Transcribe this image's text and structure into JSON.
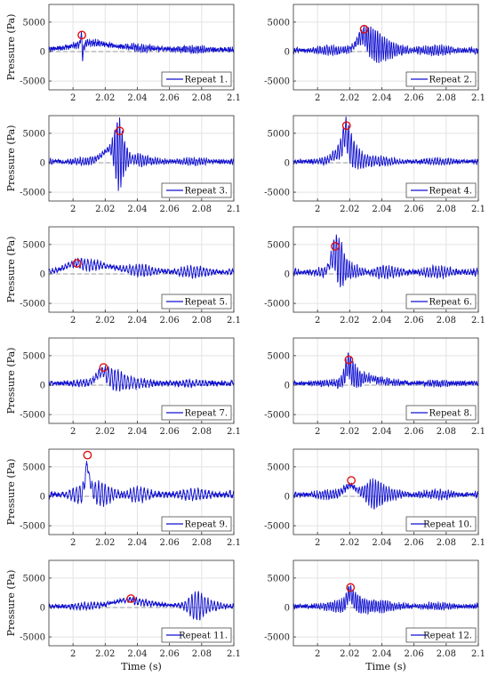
{
  "chart_data": {
    "type": "line",
    "x_range": [
      1.985,
      2.1
    ],
    "x_ticks": [
      2,
      2.02,
      2.04,
      2.06,
      2.08,
      2.1
    ],
    "x_tick_labels": [
      "2",
      "2.02",
      "2.04",
      "2.06",
      "2.08",
      "2.1"
    ],
    "y_ranges": [
      [
        -6500,
        8000
      ],
      [
        -6500,
        8000
      ],
      [
        -6500,
        8000
      ],
      [
        -6500,
        8000
      ],
      [
        -6500,
        8000
      ],
      [
        -6500,
        8000
      ]
    ],
    "y_ticks": [
      -5000,
      0,
      5000
    ],
    "y_tick_labels": [
      "-5000",
      "0",
      "5000"
    ],
    "xlabel": "Time (s)",
    "ylabel": "Pressure (Pa)",
    "grid": true,
    "legend_placement": "bottom-right",
    "series_color": "#1010d0",
    "peak_marker_color": "#dd1111",
    "zero_line_color": "#999999",
    "panels": [
      {
        "legend": "Repeat 1.",
        "baseline": 300,
        "peak": {
          "x": 2.0055,
          "y": 2800
        },
        "peaks": [
          {
            "t": 2.0055,
            "amp": 2600,
            "decay": 0.0008,
            "freq": 0
          },
          {
            "t": 2.006,
            "amp": -4200,
            "decay": 0.0006,
            "freq": 0
          },
          {
            "t": 2.015,
            "amp": 1200,
            "decay": 0.02,
            "freq": 0
          }
        ],
        "ripple": {
          "amp": 500,
          "freq": 800
        },
        "noise": 350
      },
      {
        "legend": "Repeat 2.",
        "baseline": 200,
        "peak": {
          "x": 2.029,
          "y": 3800
        },
        "peaks": [
          {
            "t": 2.029,
            "amp": 2600,
            "decay": 0.006,
            "freq": 0
          },
          {
            "t": 2.036,
            "amp": 2400,
            "decay": 0.01,
            "freq": 700
          }
        ],
        "ripple": {
          "amp": 700,
          "freq": 700
        },
        "noise": 350
      },
      {
        "legend": "Repeat 3.",
        "baseline": 200,
        "peak": {
          "x": 2.029,
          "y": 5400
        },
        "peaks": [
          {
            "t": 2.024,
            "amp": 2200,
            "decay": 0.008,
            "freq": 0
          },
          {
            "t": 2.029,
            "amp": 6500,
            "decay": 0.004,
            "freq": 650
          },
          {
            "t": 2.042,
            "amp": 1500,
            "decay": 0.01,
            "freq": 650
          }
        ],
        "ripple": {
          "amp": 600,
          "freq": 650
        },
        "noise": 300
      },
      {
        "legend": "Repeat 4.",
        "baseline": 200,
        "peak": {
          "x": 2.018,
          "y": 6300
        },
        "peaks": [
          {
            "t": 2.018,
            "amp": 4200,
            "decay": 0.003,
            "freq": 0
          },
          {
            "t": 2.021,
            "amp": 2800,
            "decay": 0.008,
            "freq": 600
          },
          {
            "t": 2.014,
            "amp": 1500,
            "decay": 0.006,
            "freq": 0
          }
        ],
        "ripple": {
          "amp": 500,
          "freq": 600
        },
        "noise": 300
      },
      {
        "legend": "Repeat 5.",
        "baseline": 300,
        "peak": {
          "x": 2.0025,
          "y": 1800
        },
        "peaks": [
          {
            "t": 2.0025,
            "amp": 1200,
            "decay": 0.01,
            "freq": 0
          },
          {
            "t": 2.02,
            "amp": 900,
            "decay": 0.02,
            "freq": 0
          }
        ],
        "ripple": {
          "amp": 900,
          "freq": 500
        },
        "noise": 300
      },
      {
        "legend": "Repeat 6.",
        "baseline": 300,
        "peak": {
          "x": 2.011,
          "y": 4700
        },
        "peaks": [
          {
            "t": 2.011,
            "amp": 3200,
            "decay": 0.004,
            "freq": 0
          },
          {
            "t": 2.015,
            "amp": 3800,
            "decay": 0.006,
            "freq": 620
          }
        ],
        "ripple": {
          "amp": 900,
          "freq": 550
        },
        "noise": 350
      },
      {
        "legend": "Repeat 7.",
        "baseline": 300,
        "peak": {
          "x": 2.019,
          "y": 3000
        },
        "peaks": [
          {
            "t": 2.019,
            "amp": 2000,
            "decay": 0.006,
            "freq": 0
          },
          {
            "t": 2.028,
            "amp": 1800,
            "decay": 0.012,
            "freq": 500
          }
        ],
        "ripple": {
          "amp": 500,
          "freq": 500
        },
        "noise": 350
      },
      {
        "legend": "Repeat 8.",
        "baseline": 300,
        "peak": {
          "x": 2.0195,
          "y": 4300
        },
        "peaks": [
          {
            "t": 2.0195,
            "amp": 3200,
            "decay": 0.003,
            "freq": 0
          },
          {
            "t": 2.022,
            "amp": 2200,
            "decay": 0.008,
            "freq": 700
          },
          {
            "t": 2.033,
            "amp": 800,
            "decay": 0.01,
            "freq": 0
          }
        ],
        "ripple": {
          "amp": 400,
          "freq": 700
        },
        "noise": 350
      },
      {
        "legend": "Repeat 9.",
        "baseline": 300,
        "peak": {
          "x": 2.009,
          "y": 7000
        },
        "peaks": [
          {
            "t": 2.009,
            "amp": 5200,
            "decay": 0.002,
            "freq": 0
          },
          {
            "t": 2.016,
            "amp": 1800,
            "decay": 0.014,
            "freq": 500
          }
        ],
        "ripple": {
          "amp": 900,
          "freq": 450
        },
        "noise": 350
      },
      {
        "legend": "Repeat 10.",
        "baseline": 300,
        "peak": {
          "x": 2.021,
          "y": 2700
        },
        "peaks": [
          {
            "t": 2.021,
            "amp": 1600,
            "decay": 0.006,
            "freq": 0
          },
          {
            "t": 2.036,
            "amp": 2400,
            "decay": 0.008,
            "freq": 600
          }
        ],
        "ripple": {
          "amp": 700,
          "freq": 600
        },
        "noise": 350
      },
      {
        "legend": "Repeat 11.",
        "baseline": 200,
        "peak": {
          "x": 2.036,
          "y": 1500
        },
        "peaks": [
          {
            "t": 2.036,
            "amp": 1100,
            "decay": 0.015,
            "freq": 0
          },
          {
            "t": 2.078,
            "amp": 2800,
            "decay": 0.008,
            "freq": 500
          }
        ],
        "ripple": {
          "amp": 500,
          "freq": 500
        },
        "noise": 300
      },
      {
        "legend": "Repeat 12.",
        "baseline": 200,
        "peak": {
          "x": 2.0205,
          "y": 3400
        },
        "peaks": [
          {
            "t": 2.0205,
            "amp": 2400,
            "decay": 0.003,
            "freq": 0
          },
          {
            "t": 2.025,
            "amp": 1500,
            "decay": 0.012,
            "freq": 700
          }
        ],
        "ripple": {
          "amp": 500,
          "freq": 700
        },
        "noise": 300
      }
    ]
  }
}
